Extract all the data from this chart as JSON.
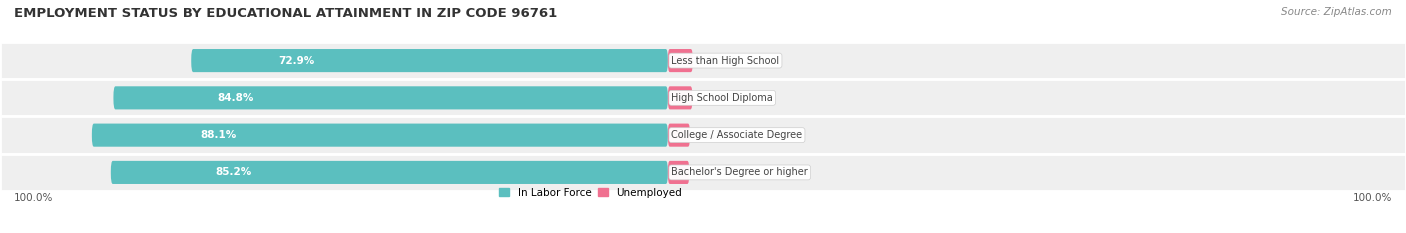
{
  "title": "EMPLOYMENT STATUS BY EDUCATIONAL ATTAINMENT IN ZIP CODE 96761",
  "source": "Source: ZipAtlas.com",
  "categories": [
    "Less than High School",
    "High School Diploma",
    "College / Associate Degree",
    "Bachelor's Degree or higher"
  ],
  "in_labor_force": [
    72.9,
    84.8,
    88.1,
    85.2
  ],
  "unemployed": [
    7.1,
    7.0,
    6.3,
    6.1
  ],
  "labor_force_color": "#5BBFBF",
  "unemployed_color": "#F07090",
  "title_fontsize": 9.5,
  "source_fontsize": 7.5,
  "bar_height": 0.62,
  "x_left_label": "100.0%",
  "x_right_label": "100.0%",
  "row_bg_even": "#F0F0F0",
  "row_bg_odd": "#E8E8E8",
  "row_separator": "#FFFFFF"
}
